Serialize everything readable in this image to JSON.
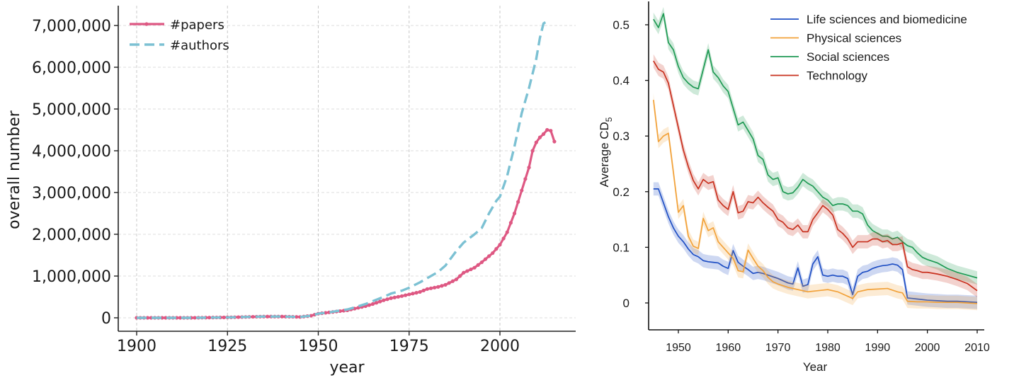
{
  "chart_data": [
    {
      "type": "line",
      "title": "",
      "xlabel": "year",
      "ylabel": "overall number",
      "xlim": [
        1895,
        2020
      ],
      "ylim": [
        -150000,
        7300000
      ],
      "xticks": [
        1900,
        1925,
        1950,
        1975,
        2000
      ],
      "yticks": [
        0,
        1000000,
        2000000,
        3000000,
        4000000,
        5000000,
        6000000,
        7000000
      ],
      "ytick_labels": [
        "0",
        "1,000,000",
        "2,000,000",
        "3,000,000",
        "4,000,000",
        "5,000,000",
        "6,000,000",
        "7,000,000"
      ],
      "grid": true,
      "legend_position": "top-left",
      "colors": {
        "papers": "#de5883",
        "authors": "#7cc1d3",
        "grid": "#dddddd",
        "vgrid": "#c8c8c8"
      },
      "series": [
        {
          "name": "#papers",
          "x": [
            1900,
            1905,
            1910,
            1915,
            1920,
            1925,
            1930,
            1935,
            1940,
            1945,
            1948,
            1950,
            1953,
            1955,
            1958,
            1960,
            1963,
            1965,
            1968,
            1970,
            1973,
            1975,
            1978,
            1980,
            1983,
            1985,
            1988,
            1990,
            1993,
            1995,
            1998,
            2000,
            2002,
            2004,
            2006,
            2008,
            2009,
            2010,
            2011,
            2012,
            2013,
            2014,
            2015
          ],
          "y": [
            0,
            0,
            0,
            0,
            5000,
            10000,
            20000,
            30000,
            30000,
            20000,
            50000,
            100000,
            130000,
            150000,
            180000,
            220000,
            280000,
            330000,
            420000,
            470000,
            520000,
            560000,
            620000,
            690000,
            740000,
            790000,
            920000,
            1080000,
            1200000,
            1330000,
            1550000,
            1750000,
            2050000,
            2500000,
            3050000,
            3600000,
            4000000,
            4200000,
            4320000,
            4400000,
            4500000,
            4480000,
            4220000
          ]
        },
        {
          "name": "#authors",
          "x": [
            1900,
            1905,
            1910,
            1915,
            1920,
            1925,
            1930,
            1935,
            1940,
            1945,
            1948,
            1950,
            1953,
            1955,
            1958,
            1960,
            1963,
            1965,
            1968,
            1970,
            1973,
            1975,
            1978,
            1980,
            1983,
            1985,
            1988,
            1990,
            1993,
            1995,
            1997,
            1999,
            2000,
            2002,
            2004,
            2006,
            2008,
            2010,
            2011,
            2012,
            2013
          ],
          "y": [
            0,
            0,
            0,
            0,
            5000,
            10000,
            20000,
            30000,
            30000,
            20000,
            50000,
            100000,
            130000,
            160000,
            200000,
            250000,
            330000,
            400000,
            500000,
            580000,
            650000,
            720000,
            850000,
            950000,
            1100000,
            1250000,
            1600000,
            1800000,
            2000000,
            2150000,
            2500000,
            2800000,
            2900000,
            3400000,
            4100000,
            4900000,
            5500000,
            6200000,
            6700000,
            7050000,
            7100000
          ]
        }
      ]
    },
    {
      "type": "line",
      "title": "",
      "xlabel": "Year",
      "ylabel": "Average CD",
      "ylabel_subscript": "5",
      "xlim": [
        1944,
        2011
      ],
      "ylim": [
        -0.05,
        0.54
      ],
      "xticks": [
        1950,
        1960,
        1970,
        1980,
        1990,
        2000,
        2010
      ],
      "yticks": [
        0,
        0.1,
        0.2,
        0.3,
        0.4,
        0.5
      ],
      "ytick_labels": [
        "0",
        "0.1",
        "0.2",
        "0.3",
        "0.4",
        "0.5"
      ],
      "grid": false,
      "legend_position": "top-right",
      "band": 0.012,
      "series": [
        {
          "name": "Life sciences and biomedicine",
          "color": "#1f4fc4",
          "x": [
            1945,
            1946,
            1947,
            1948,
            1949,
            1950,
            1951,
            1952,
            1953,
            1954,
            1955,
            1956,
            1957,
            1958,
            1959,
            1960,
            1961,
            1962,
            1963,
            1964,
            1965,
            1966,
            1967,
            1968,
            1969,
            1970,
            1971,
            1972,
            1973,
            1974,
            1975,
            1976,
            1977,
            1978,
            1979,
            1980,
            1981,
            1982,
            1983,
            1984,
            1985,
            1986,
            1987,
            1988,
            1989,
            1990,
            1991,
            1992,
            1993,
            1994,
            1995,
            1996,
            1997,
            1998,
            1999,
            2000,
            2002,
            2004,
            2006,
            2008,
            2010
          ],
          "y": [
            0.205,
            0.205,
            0.18,
            0.155,
            0.135,
            0.12,
            0.11,
            0.097,
            0.087,
            0.083,
            0.076,
            0.074,
            0.073,
            0.072,
            0.066,
            0.062,
            0.094,
            0.073,
            0.066,
            0.06,
            0.053,
            0.055,
            0.053,
            0.05,
            0.047,
            0.044,
            0.04,
            0.036,
            0.034,
            0.063,
            0.03,
            0.033,
            0.07,
            0.083,
            0.05,
            0.048,
            0.05,
            0.048,
            0.048,
            0.044,
            0.015,
            0.048,
            0.055,
            0.057,
            0.062,
            0.065,
            0.067,
            0.068,
            0.07,
            0.068,
            0.06,
            0.009,
            0.008,
            0.007,
            0.006,
            0.005,
            0.004,
            0.003,
            0.003,
            0.002,
            0.001
          ]
        },
        {
          "name": "Physical sciences",
          "color": "#f2a23a",
          "x": [
            1945,
            1946,
            1947,
            1948,
            1949,
            1950,
            1951,
            1952,
            1953,
            1954,
            1955,
            1956,
            1957,
            1958,
            1959,
            1960,
            1961,
            1962,
            1963,
            1964,
            1965,
            1966,
            1967,
            1968,
            1969,
            1970,
            1972,
            1974,
            1976,
            1978,
            1980,
            1982,
            1984,
            1985,
            1986,
            1988,
            1990,
            1992,
            1994,
            1995,
            1996,
            1998,
            2000,
            2002,
            2004,
            2006,
            2008,
            2010
          ],
          "y": [
            0.365,
            0.29,
            0.3,
            0.305,
            0.235,
            0.163,
            0.175,
            0.12,
            0.102,
            0.098,
            0.152,
            0.13,
            0.135,
            0.11,
            0.1,
            0.09,
            0.08,
            0.058,
            0.056,
            0.095,
            0.08,
            0.066,
            0.058,
            0.046,
            0.038,
            0.034,
            0.028,
            0.024,
            0.02,
            0.022,
            0.024,
            0.02,
            0.012,
            0.008,
            0.02,
            0.024,
            0.025,
            0.026,
            0.02,
            0.018,
            0.003,
            0.002,
            0.002,
            0.001,
            0.001,
            0.001,
            0.0,
            -0.001
          ]
        },
        {
          "name": "Social sciences",
          "color": "#1f9a54",
          "x": [
            1945,
            1946,
            1947,
            1948,
            1949,
            1950,
            1951,
            1952,
            1953,
            1954,
            1955,
            1956,
            1957,
            1958,
            1959,
            1960,
            1961,
            1962,
            1963,
            1964,
            1965,
            1966,
            1967,
            1968,
            1969,
            1970,
            1971,
            1972,
            1973,
            1974,
            1975,
            1976,
            1977,
            1978,
            1979,
            1980,
            1981,
            1982,
            1983,
            1984,
            1985,
            1986,
            1987,
            1988,
            1989,
            1990,
            1991,
            1992,
            1993,
            1994,
            1995,
            1996,
            1997,
            1998,
            1999,
            2000,
            2002,
            2004,
            2006,
            2008,
            2010
          ],
          "y": [
            0.51,
            0.495,
            0.52,
            0.468,
            0.455,
            0.425,
            0.405,
            0.395,
            0.388,
            0.385,
            0.42,
            0.455,
            0.415,
            0.405,
            0.39,
            0.38,
            0.35,
            0.32,
            0.325,
            0.31,
            0.295,
            0.265,
            0.258,
            0.23,
            0.222,
            0.225,
            0.2,
            0.196,
            0.198,
            0.208,
            0.222,
            0.215,
            0.21,
            0.2,
            0.19,
            0.185,
            0.175,
            0.178,
            0.178,
            0.175,
            0.165,
            0.165,
            0.16,
            0.14,
            0.13,
            0.125,
            0.12,
            0.12,
            0.115,
            0.118,
            0.11,
            0.103,
            0.1,
            0.09,
            0.082,
            0.078,
            0.072,
            0.062,
            0.055,
            0.05,
            0.045
          ]
        },
        {
          "name": "Technology",
          "color": "#c8301e",
          "x": [
            1945,
            1946,
            1947,
            1948,
            1949,
            1950,
            1951,
            1952,
            1953,
            1954,
            1955,
            1956,
            1957,
            1958,
            1959,
            1960,
            1961,
            1962,
            1963,
            1964,
            1965,
            1966,
            1967,
            1968,
            1969,
            1970,
            1971,
            1972,
            1973,
            1974,
            1975,
            1976,
            1977,
            1978,
            1979,
            1980,
            1981,
            1982,
            1983,
            1984,
            1985,
            1986,
            1987,
            1988,
            1989,
            1990,
            1991,
            1992,
            1993,
            1994,
            1995,
            1996,
            1997,
            1998,
            1999,
            2000,
            2002,
            2004,
            2006,
            2008,
            2010
          ],
          "y": [
            0.435,
            0.42,
            0.415,
            0.395,
            0.355,
            0.315,
            0.275,
            0.245,
            0.22,
            0.205,
            0.222,
            0.215,
            0.218,
            0.185,
            0.175,
            0.168,
            0.2,
            0.162,
            0.165,
            0.182,
            0.18,
            0.19,
            0.18,
            0.172,
            0.165,
            0.15,
            0.145,
            0.135,
            0.132,
            0.14,
            0.128,
            0.128,
            0.15,
            0.162,
            0.175,
            0.168,
            0.158,
            0.132,
            0.125,
            0.115,
            0.1,
            0.11,
            0.11,
            0.11,
            0.115,
            0.115,
            0.11,
            0.112,
            0.105,
            0.105,
            0.108,
            0.065,
            0.06,
            0.058,
            0.055,
            0.055,
            0.052,
            0.048,
            0.042,
            0.035,
            0.022
          ]
        }
      ]
    }
  ]
}
